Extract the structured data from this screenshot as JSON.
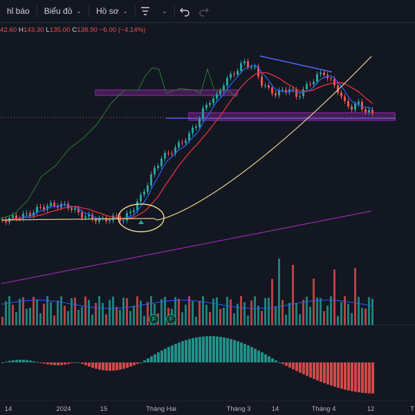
{
  "toolbar": {
    "alerts_label": "hỉ báo",
    "chart_menu_label": "Biểu đồ",
    "profile_menu_label": "Hồ sơ",
    "icons": [
      "filter-icon",
      "chevron-down-icon",
      "undo-icon",
      "redo-icon"
    ]
  },
  "ohlc": {
    "open_label": "",
    "open_value": "42.60",
    "high_label": "H",
    "high_value": "143.30",
    "low_label": "L",
    "low_value": "135.00",
    "close_label": "C",
    "close_value": "138.90",
    "change": "−6.00 (−4.14%)"
  },
  "xaxis": {
    "labels": [
      "14",
      "2024",
      "15",
      "Tháng Hai",
      "Tháng 3",
      "14",
      "Tháng 4",
      "12",
      "T"
    ]
  },
  "badges": [
    "F",
    "F"
  ],
  "colors": {
    "background": "#131722",
    "up": "#26a69a",
    "down": "#ef5350",
    "ma_fast": "#2962ff",
    "ma_mid": "#f23645",
    "ma_slow": "#e8d68a",
    "ma_long": "#9c27b0",
    "rs_line": "#2e7d32",
    "zone": "#9c27b0",
    "trendline": "#4f6bff",
    "circle": "#e8d68a"
  }
}
